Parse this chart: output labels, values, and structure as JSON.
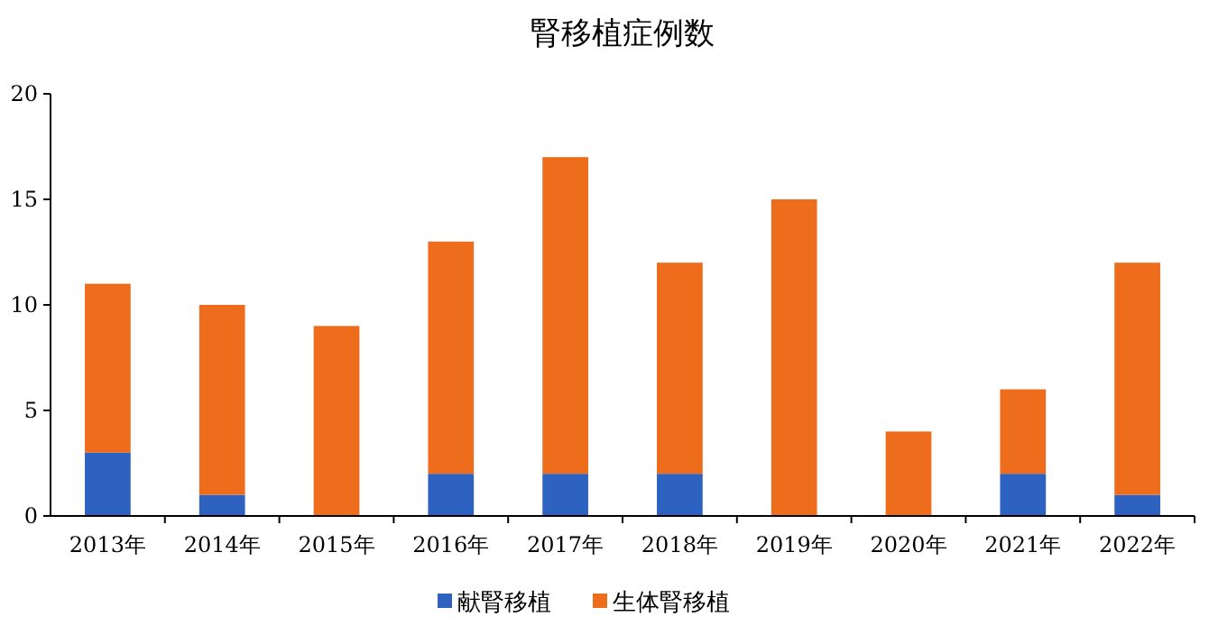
{
  "chart_data": {
    "type": "bar",
    "title": "腎移植症例数",
    "categories": [
      "2013年",
      "2014年",
      "2015年",
      "2016年",
      "2017年",
      "2018年",
      "2019年",
      "2020年",
      "2021年",
      "2022年"
    ],
    "stacked": true,
    "ylim": [
      0,
      20
    ],
    "yticks": [
      0,
      5,
      10,
      15,
      20
    ],
    "legend": "bottom",
    "series": [
      {
        "name": "献腎移植",
        "color": "#2e62c0",
        "values": [
          3,
          1,
          0,
          2,
          2,
          2,
          0,
          0,
          2,
          1
        ]
      },
      {
        "name": "生体腎移植",
        "color": "#ed6d1d",
        "values": [
          8,
          9,
          9,
          11,
          15,
          10,
          15,
          4,
          4,
          11
        ]
      }
    ]
  }
}
